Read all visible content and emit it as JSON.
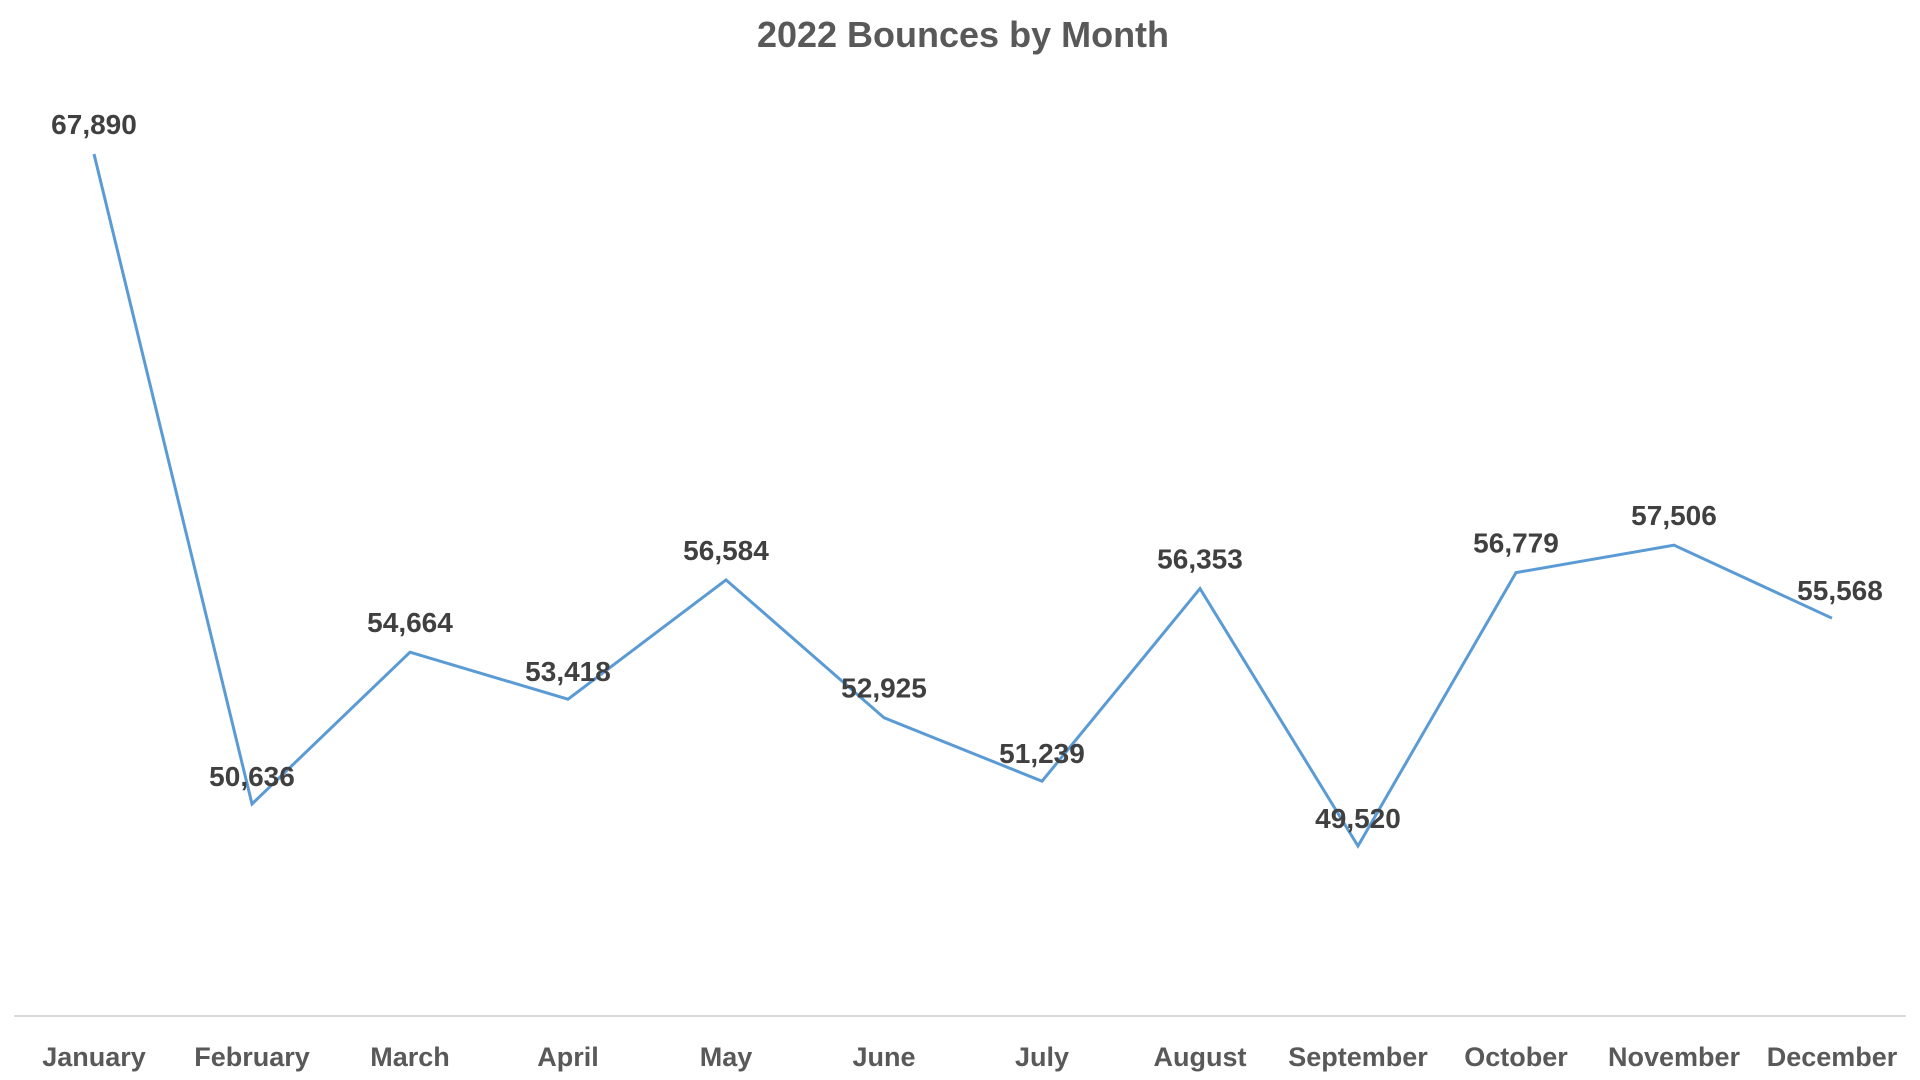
{
  "chart_data": {
    "type": "line",
    "title": "2022 Bounces by Month",
    "xlabel": "",
    "ylabel": "",
    "categories": [
      "January",
      "February",
      "March",
      "April",
      "May",
      "June",
      "July",
      "August",
      "September",
      "October",
      "November",
      "December"
    ],
    "series": [
      {
        "values": [
          67890,
          50636,
          54664,
          53418,
          56584,
          52925,
          51239,
          56353,
          49520,
          56779,
          57506,
          55568
        ],
        "labels": [
          "67,890",
          "50,636",
          "54,664",
          "53,418",
          "56,584",
          "52,925",
          "51,239",
          "56,353",
          "49,520",
          "56,779",
          "57,506",
          "55,568"
        ],
        "color": "#5b9bd5"
      }
    ],
    "ylim": [
      45000,
      70000
    ],
    "grid": false,
    "legend": "none"
  },
  "colors": {
    "series": "#5b9bd5",
    "axis": "#d9d9d9",
    "text": "#595959",
    "data_label": "#404040"
  }
}
